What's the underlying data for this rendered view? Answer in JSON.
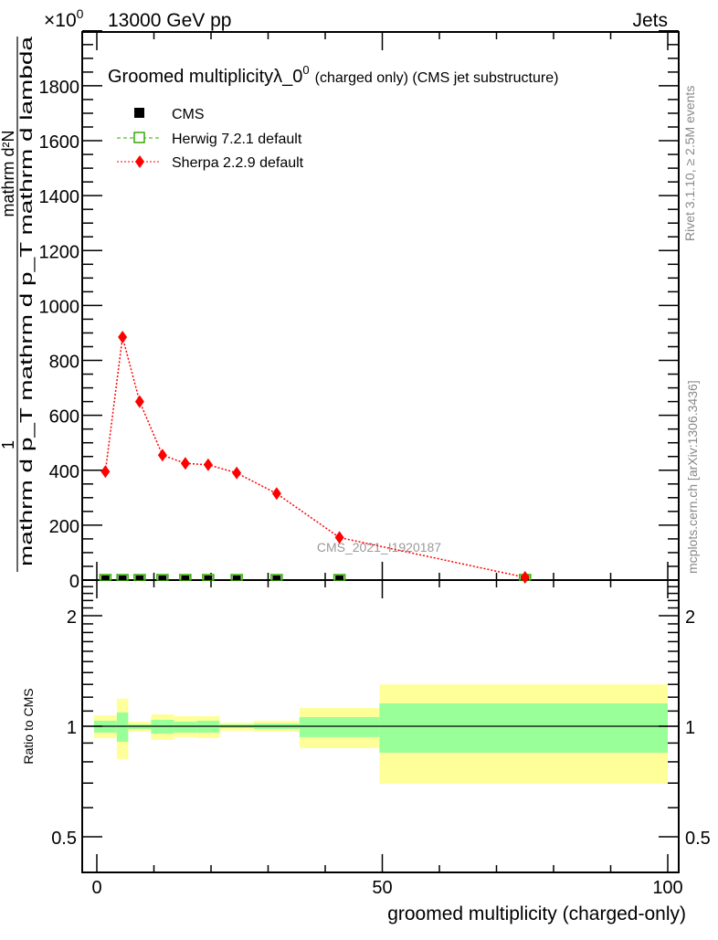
{
  "header": {
    "left": "13000 GeV pp",
    "right": "Jets",
    "exponent_base": "×10",
    "exponent_power": "0"
  },
  "side_text": {
    "rivet": "Rivet 3.1.10, ≥ 2.5M events",
    "mcplots": "mcplots.cern.ch [arXiv:1306.3436]"
  },
  "watermark": "CMS_2021_I1920187",
  "colors": {
    "cms": "#000000",
    "herwig": "#33aa00",
    "sherpa": "#ff0000",
    "band_outer": "#ffff99",
    "band_inner": "#99ff99"
  },
  "chart_data": [
    {
      "type": "scatter",
      "title_main": "Groomed multiplicityλ_0",
      "title_sup": "0",
      "title_suffix": "(charged only) (CMS jet substructure)",
      "ylabel_numerator": "mathrm d²N",
      "ylabel_denominator": "mathrm d p_T mathrm d p_T mathrm d lambda",
      "ylabel_full": "1 / mathrm d N / mathrm d p_T · mathrm d²N / mathrm d p_T mathrm d lambda",
      "xlim": [
        -2.6,
        102
      ],
      "ylim": [
        0,
        2000
      ],
      "yticks": [
        0,
        200,
        400,
        600,
        800,
        1000,
        1200,
        1400,
        1600,
        1800
      ],
      "ytick_labels": [
        "0",
        "200",
        "400",
        "600",
        "800",
        "1000",
        "1200",
        "1400",
        "1600",
        "1800"
      ],
      "legend_position": "top-left",
      "legend": [
        "CMS",
        "Herwig 7.2.1 default",
        "Sherpa 2.2.9 default"
      ],
      "x": [
        1.5,
        4.5,
        7.5,
        11.5,
        15.5,
        19.5,
        24.5,
        31.5,
        42.5,
        75
      ],
      "series": [
        {
          "name": "CMS",
          "values": [
            0,
            0,
            0,
            0,
            0,
            0,
            0,
            0,
            0,
            0
          ]
        },
        {
          "name": "Herwig 7.2.1 default",
          "values": [
            0,
            0,
            0,
            0,
            0,
            0,
            0,
            0,
            0,
            0
          ]
        },
        {
          "name": "Sherpa 2.2.9 default",
          "values": [
            395,
            885,
            650,
            455,
            425,
            420,
            390,
            315,
            155,
            10
          ]
        }
      ]
    },
    {
      "type": "area",
      "ylabel": "Ratio to CMS",
      "xlabel": "groomed multiplicity (charged-only)",
      "xlim": [
        -2.6,
        102
      ],
      "ylim": [
        0.4,
        2.5
      ],
      "yscale": "log",
      "yticks": [
        0.5,
        1,
        2
      ],
      "ytick_labels": [
        "0.5",
        "1",
        "2"
      ],
      "xticks": [
        0,
        50,
        100
      ],
      "xtick_labels": [
        "0",
        "50",
        "100"
      ],
      "bin_edges": [
        -0.5,
        3.5,
        5.5,
        9.5,
        13.5,
        17.5,
        21.5,
        27.5,
        35.5,
        49.5,
        100
      ],
      "outer_band": {
        "high": [
          1.071,
          1.188,
          1.029,
          1.077,
          1.065,
          1.065,
          1.023,
          1.035,
          1.121,
          1.3
        ],
        "low": [
          0.928,
          0.814,
          0.966,
          0.918,
          0.934,
          0.928,
          0.972,
          0.966,
          0.872,
          0.697
        ]
      },
      "inner_band": {
        "high": [
          1.035,
          1.09,
          1.011,
          1.041,
          1.029,
          1.035,
          1.011,
          1.017,
          1.059,
          1.154
        ],
        "low": [
          0.961,
          0.907,
          0.983,
          0.955,
          0.961,
          0.961,
          0.989,
          0.983,
          0.934,
          0.847
        ]
      }
    }
  ]
}
